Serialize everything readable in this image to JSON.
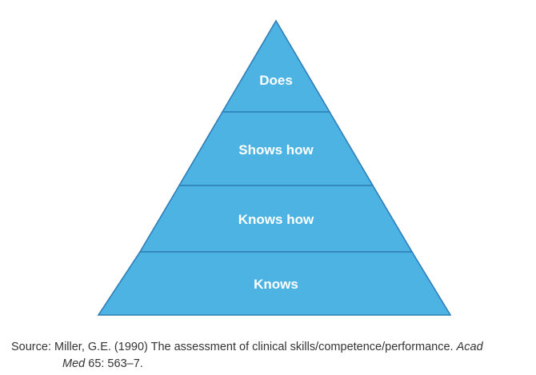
{
  "pyramid": {
    "levels_top_to_bottom": [
      {
        "label": "Does"
      },
      {
        "label": "Shows how"
      },
      {
        "label": "Knows how"
      },
      {
        "label": "Knows"
      }
    ],
    "fill_color": "#4db3e3",
    "stroke_color": "#2f7eb8"
  },
  "source": {
    "prefix": "Source: Miller, G.E. (1990) The assessment of clinical skills/competence/performance.",
    "journal_part1": "Acad",
    "journal_part2": "Med",
    "citation_tail": "65: 563–7."
  }
}
